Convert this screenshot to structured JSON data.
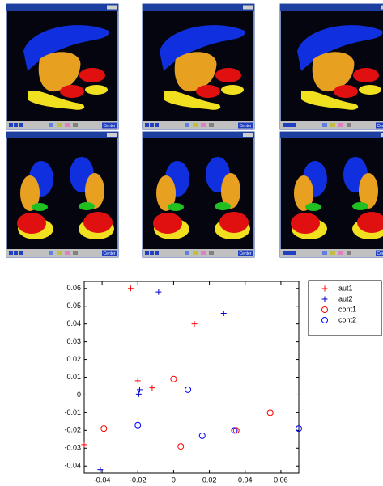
{
  "window": {
    "center_button": "Center"
  },
  "chart_data": {
    "type": "scatter",
    "xlim": [
      -0.05,
      0.07
    ],
    "xticks": [
      -0.04,
      -0.02,
      0,
      0.02,
      0.04,
      0.06
    ],
    "ylim": [
      -0.044,
      0.064
    ],
    "yticks": [
      0.06,
      0.05,
      0.04,
      0.03,
      0.02,
      0.01,
      0,
      -0.01,
      -0.02,
      -0.03,
      -0.04
    ],
    "legend": "outside-top-right",
    "series": [
      {
        "name": "aut1",
        "color": "#ff0000",
        "marker": "+",
        "x": [
          -0.024,
          0.0116,
          -0.02,
          -0.012,
          -0.05
        ],
        "values": [
          0.06,
          0.04,
          0.008,
          0.004,
          -0.028
        ]
      },
      {
        "name": "aut2",
        "color": "#0000cc",
        "marker": "+",
        "x": [
          -0.0084,
          0.028,
          -0.019,
          -0.0195,
          -0.041
        ],
        "values": [
          0.058,
          0.046,
          0.003,
          0.0005,
          -0.042
        ]
      },
      {
        "name": "cont1",
        "color": "#ff0000",
        "marker": "o",
        "x": [
          0,
          -0.039,
          0.004,
          0.054,
          0.035
        ],
        "values": [
          0.009,
          -0.019,
          -0.029,
          -0.01,
          -0.02
        ]
      },
      {
        "name": "cont2",
        "color": "#0000ff",
        "marker": "o",
        "x": [
          -0.02,
          0.008,
          0.016,
          0.034,
          0.07
        ],
        "values": [
          -0.017,
          0.003,
          -0.023,
          -0.02,
          -0.019
        ]
      }
    ]
  }
}
